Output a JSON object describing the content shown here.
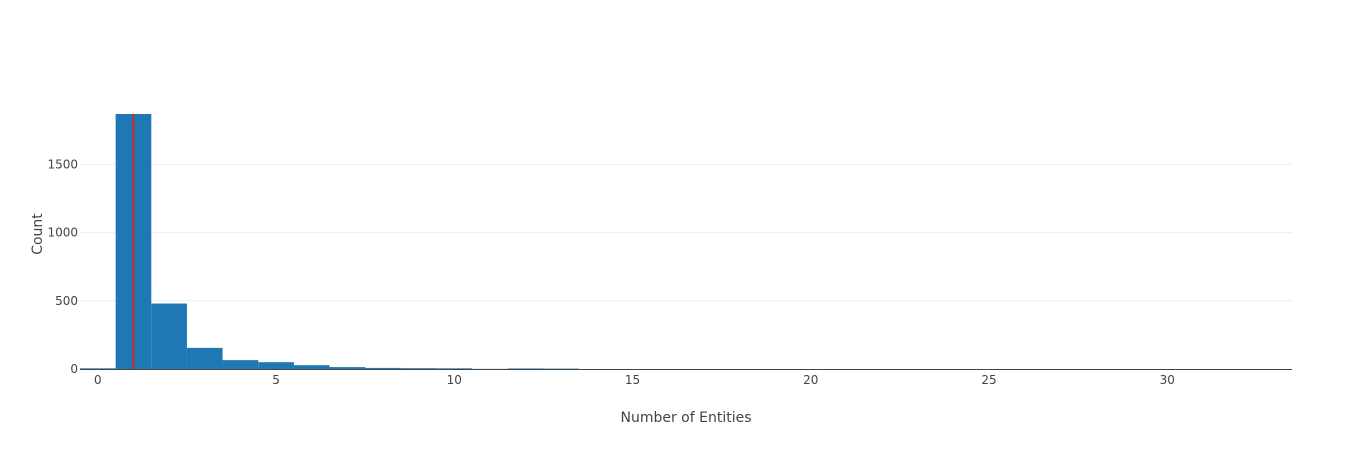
{
  "chart_data": {
    "type": "bar",
    "title": "",
    "xlabel": "Number of Entities",
    "ylabel": "Count",
    "x_range": [
      -0.5,
      33.5
    ],
    "ylim": [
      0,
      1870
    ],
    "x_ticks": [
      0,
      5,
      10,
      15,
      20,
      25,
      30
    ],
    "y_ticks": [
      0,
      500,
      1000,
      1500
    ],
    "grid": "horizontal",
    "legend": "none",
    "bin_width": 1,
    "bins": [
      {
        "x": 0,
        "value": 5
      },
      {
        "x": 1,
        "value": 1870
      },
      {
        "x": 2,
        "value": 480
      },
      {
        "x": 3,
        "value": 155
      },
      {
        "x": 4,
        "value": 65
      },
      {
        "x": 5,
        "value": 50
      },
      {
        "x": 6,
        "value": 28
      },
      {
        "x": 7,
        "value": 14
      },
      {
        "x": 8,
        "value": 8
      },
      {
        "x": 9,
        "value": 6
      },
      {
        "x": 10,
        "value": 5
      },
      {
        "x": 11,
        "value": 1
      },
      {
        "x": 12,
        "value": 4
      },
      {
        "x": 13,
        "value": 3
      }
    ],
    "reference_line": {
      "x": 1
    },
    "colors": {
      "bars": "#1f77b4",
      "reference_line": "#d62728",
      "grid": "#eeeeee",
      "axis_line": "#444444"
    }
  }
}
